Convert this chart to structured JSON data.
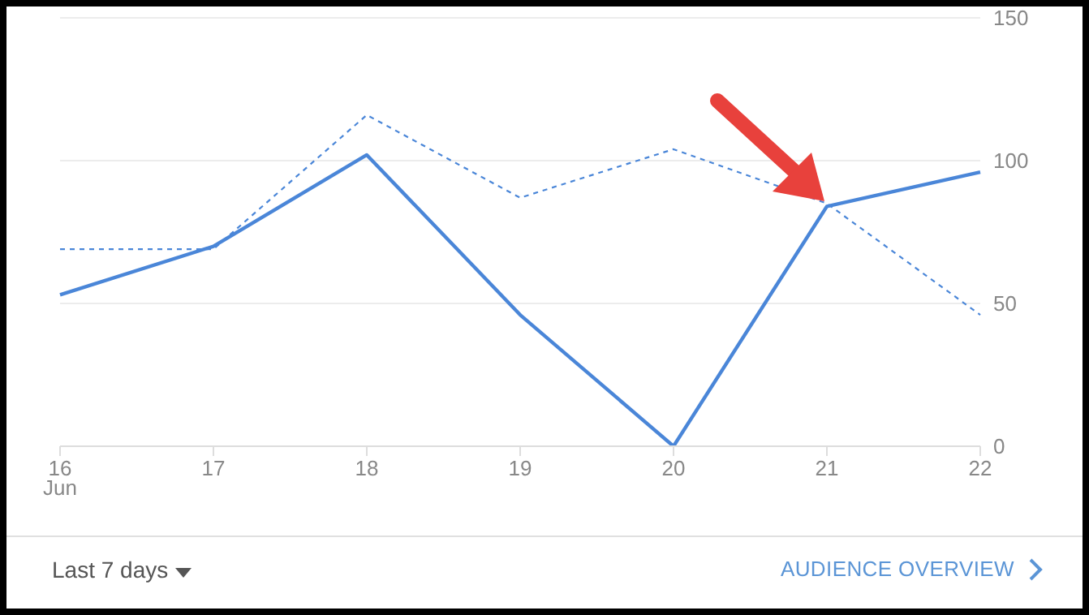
{
  "chart_data": {
    "type": "line",
    "categories": [
      "16\nJun",
      "17",
      "18",
      "19",
      "20",
      "21",
      "22"
    ],
    "series": [
      {
        "color": "#4a86d8",
        "line_style": "solid",
        "values": [
          53,
          70,
          102,
          46,
          0,
          84,
          96
        ]
      },
      {
        "color": "#4a86d8",
        "line_style": "dashed",
        "values": [
          69,
          69,
          116,
          87,
          104,
          85,
          46
        ]
      }
    ],
    "ylim": [
      0,
      150
    ],
    "yticks": [
      0,
      50,
      100,
      150
    ],
    "grid": "y",
    "marker": "none",
    "annotations": [
      "Last 7 days",
      "AUDIENCE OVERVIEW"
    ]
  }
}
